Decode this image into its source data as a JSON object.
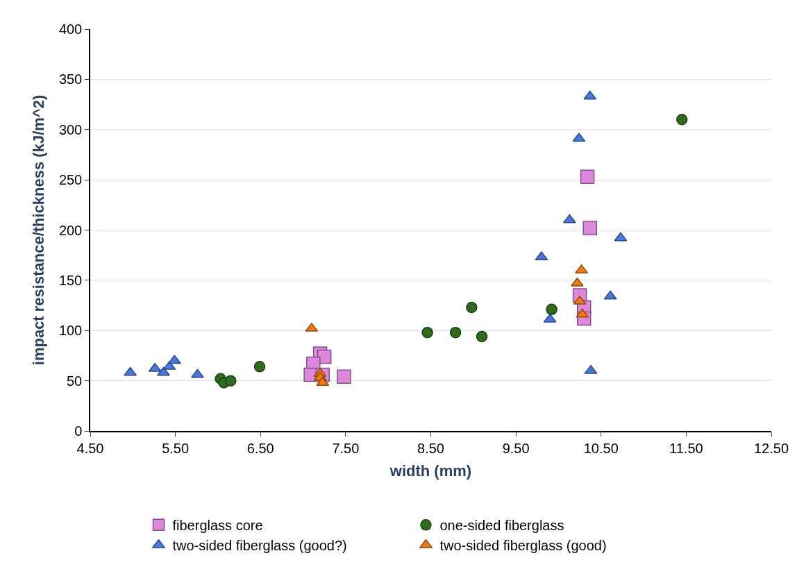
{
  "chart_data": {
    "type": "scatter",
    "xlabel": "width (mm)",
    "ylabel": "impact resistance/thickness (kJ/m^2)",
    "xlim": [
      4.5,
      12.5
    ],
    "xticks": [
      {
        "value": 4.5,
        "label": "4.50"
      },
      {
        "value": 5.5,
        "label": "5.50"
      },
      {
        "value": 6.5,
        "label": "6.50"
      },
      {
        "value": 7.5,
        "label": "7.50"
      },
      {
        "value": 8.5,
        "label": "8.50"
      },
      {
        "value": 9.5,
        "label": "9.50"
      },
      {
        "value": 10.5,
        "label": "10.50"
      },
      {
        "value": 11.5,
        "label": "11.50"
      },
      {
        "value": 12.5,
        "label": "12.50"
      }
    ],
    "ylim": [
      0,
      400
    ],
    "yticks": [
      0,
      50,
      100,
      150,
      200,
      250,
      300,
      350,
      400
    ],
    "grid": "y",
    "legend": "bottom",
    "series": [
      {
        "name": "fiberglass core",
        "color": "#dd88dd",
        "marker": "square",
        "x": [
          7.2,
          7.25,
          7.12,
          7.09,
          7.23,
          7.48,
          10.34,
          10.37,
          10.25,
          10.3,
          10.3
        ],
        "values": [
          77,
          74,
          67,
          56,
          56,
          54,
          253,
          202,
          135,
          123,
          112
        ]
      },
      {
        "name": "one-sided fiberglass",
        "color": "#2e6b1e",
        "marker": "circle",
        "x": [
          6.03,
          6.07,
          6.15,
          6.49,
          8.46,
          8.79,
          8.98,
          9.1,
          9.92,
          11.45
        ],
        "values": [
          52,
          48,
          50,
          64,
          98,
          98,
          123,
          94,
          121,
          310
        ]
      },
      {
        "name": "two-sided fiberglass (good?)",
        "color": "#4a78e0",
        "marker": "triangle",
        "x": [
          4.97,
          5.26,
          5.36,
          5.43,
          5.49,
          5.76,
          9.8,
          9.9,
          10.13,
          10.24,
          10.37,
          10.38,
          10.61,
          10.73
        ],
        "values": [
          58,
          62,
          58,
          64,
          70,
          56,
          173,
          111,
          210,
          291,
          333,
          60,
          134,
          192
        ]
      },
      {
        "name": "two-sided fiberglass (good)",
        "color": "#f07a10",
        "marker": "triangle",
        "x": [
          7.1,
          7.2,
          7.2,
          7.23,
          10.27,
          10.22,
          10.25,
          10.28
        ],
        "values": [
          102,
          57,
          53,
          48,
          160,
          147,
          129,
          116
        ]
      }
    ]
  }
}
